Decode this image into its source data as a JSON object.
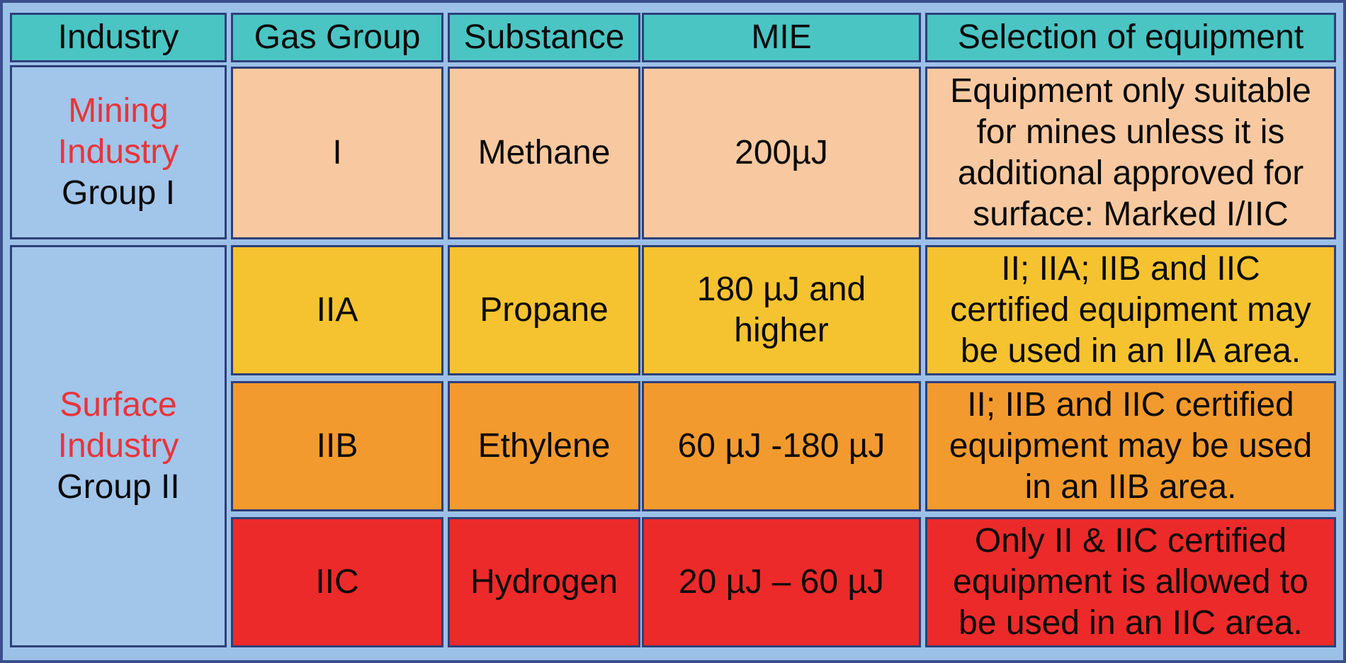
{
  "headers": {
    "industry": "Industry",
    "gas_group": "Gas Group",
    "substance": "Substance",
    "mie": "MIE",
    "selection": "Selection of equipment"
  },
  "industries": [
    {
      "line1": "Mining",
      "line2": "Industry",
      "line3": "Group I"
    },
    {
      "line1": "Surface",
      "line2": "Industry",
      "line3": "Group II"
    }
  ],
  "rows": [
    {
      "gas_group": "I",
      "substance": "Methane",
      "mie": "200µJ",
      "selection": "Equipment only suitable\nfor mines unless it is\nadditional approved for\nsurface: Marked I/IIC",
      "color": "#f8c9a0"
    },
    {
      "gas_group": "IIA",
      "substance": "Propane",
      "mie": "180 µJ and\nhigher",
      "selection": "II; IIA; IIB and IIC\ncertified equipment may\nbe used in an IIA area.",
      "color": "#f5c330"
    },
    {
      "gas_group": "IIB",
      "substance": "Ethylene",
      "mie": "60 µJ -180 µJ",
      "selection": "II; IIB and IIC certified\nequipment may be used\nin an IIB area.",
      "color": "#f39a2e"
    },
    {
      "gas_group": "IIC",
      "substance": "Hydrogen",
      "mie": "20 µJ – 60 µJ",
      "selection": "Only II & IIC certified\nequipment is allowed to\nbe used in an IIC area.",
      "color": "#ec2a2a"
    }
  ],
  "colors": {
    "header": "#4bc4c4",
    "industry_bg": "#a2c5ea",
    "industry_label": "#e8343a",
    "grid_line": "#2e3f7a"
  }
}
